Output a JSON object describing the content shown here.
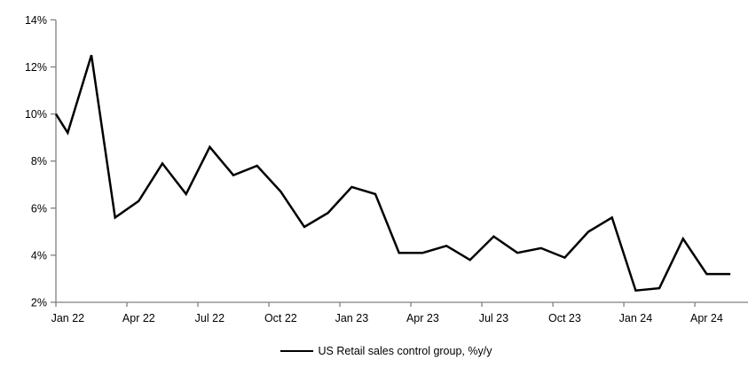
{
  "chart_data": {
    "type": "line",
    "title": "",
    "x": [
      "Jan 22",
      "Feb 22",
      "Mar 22",
      "Apr 22",
      "May 22",
      "Jun 22",
      "Jul 22",
      "Aug 22",
      "Sep 22",
      "Oct 22",
      "Nov 22",
      "Dec 22",
      "Jan 23",
      "Feb 23",
      "Mar 23",
      "Apr 23",
      "May 23",
      "Jun 23",
      "Jul 23",
      "Aug 23",
      "Sep 23",
      "Oct 23",
      "Nov 23",
      "Dec 23",
      "Jan 24",
      "Feb 24",
      "Mar 24",
      "Apr 24",
      "May 24"
    ],
    "series": [
      {
        "name": "US Retail sales control group, %y/y",
        "color": "#000000",
        "values": [
          9.2,
          12.5,
          5.6,
          6.3,
          7.9,
          6.6,
          8.6,
          7.4,
          7.8,
          6.7,
          5.2,
          5.8,
          6.9,
          6.6,
          4.1,
          4.1,
          4.4,
          3.8,
          4.8,
          4.1,
          4.3,
          3.9,
          5.0,
          5.6,
          2.5,
          2.6,
          4.7,
          3.2,
          3.2
        ],
        "edge_entry_value": 10.0
      }
    ],
    "x_tick_labels": [
      "Jan 22",
      "Apr 22",
      "Jul 22",
      "Oct 22",
      "Jan 23",
      "Apr 23",
      "Jul 23",
      "Oct 23",
      "Jan 24",
      "Apr 24"
    ],
    "y_tick_labels": [
      "2%",
      "4%",
      "6%",
      "8%",
      "10%",
      "12%",
      "14%"
    ],
    "ylim": [
      2,
      14
    ],
    "ytick_step": 2,
    "grid": false,
    "legend_position": "bottom",
    "axis_color": "#808080",
    "background_color": "#ffffff"
  },
  "legend": {
    "label": "US Retail sales control group, %y/y"
  }
}
